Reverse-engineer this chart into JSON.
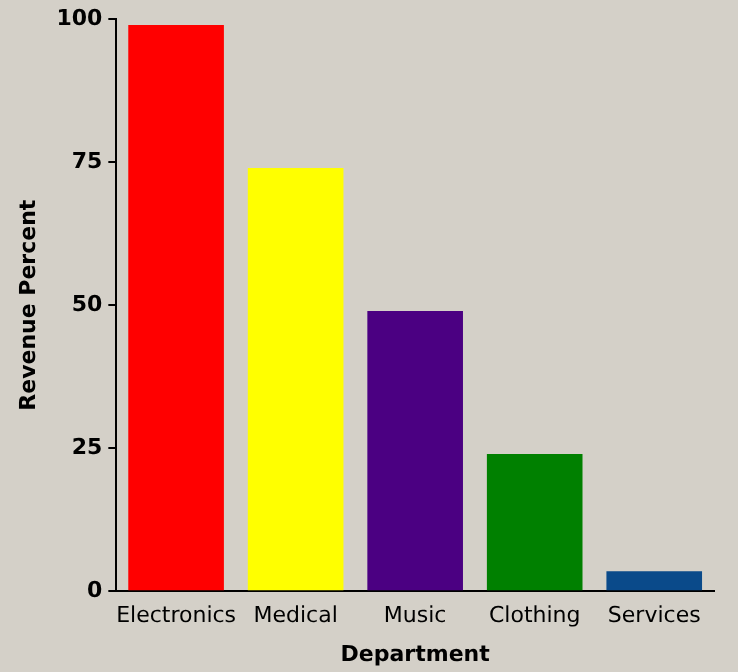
{
  "chart_data": {
    "type": "bar",
    "xlabel": "Department",
    "ylabel": "Revenue Percent",
    "categories": [
      "Electronics",
      "Medical",
      "Music",
      "Clothing",
      "Services"
    ],
    "values": [
      99,
      74,
      49,
      24,
      3.5
    ],
    "colors": [
      "#ff0000",
      "#ffff00",
      "#4b0082",
      "#008000",
      "#0a4a8a"
    ],
    "ylim": [
      0,
      100
    ],
    "yticks": [
      0,
      25,
      50,
      75,
      100
    ],
    "grid": false,
    "legend": false
  }
}
